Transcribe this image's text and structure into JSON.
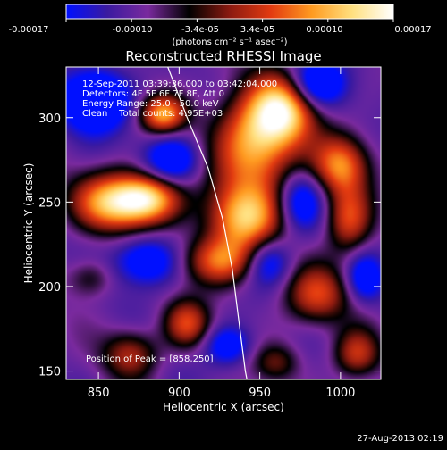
{
  "title": "Reconstructed RHESSI Image",
  "colorbar": {
    "tick_labels": [
      "-0.00017",
      "-0.00010",
      "-3.4e-05",
      "3.4e-05",
      "0.00010",
      "0.00017"
    ],
    "unit_label": "(photons cm⁻² s⁻¹ asec⁻²)",
    "colors": [
      "#0010ff",
      "#3a1aa0",
      "#7a2a9e",
      "#000000",
      "#8b1a10",
      "#e23a10",
      "#ff9a20",
      "#ffe080",
      "#ffffff"
    ]
  },
  "annotations": {
    "time_range": "12-Sep-2011 03:39:36.000 to 03:42:04.000",
    "detectors": "Detectors: 4F 5F 6F 7F 8F, Att 0",
    "energy_range": "Energy Range: 25.0 - 50.0 keV",
    "clean_totals": "Clean    Total counts: 4.95E+03",
    "peak_position": "Position of Peak = [858,250]"
  },
  "footer_date": "27-Aug-2013 02:19",
  "chart_data": {
    "type": "heatmap",
    "title": "Reconstructed RHESSI Image",
    "xlabel": "Heliocentric X (arcsec)",
    "ylabel": "Heliocentric Y (arcsec)",
    "xlim": [
      830,
      1025
    ],
    "ylim": [
      145,
      330
    ],
    "x_ticks": [
      850,
      900,
      950,
      1000
    ],
    "y_ticks": [
      150,
      200,
      250,
      300
    ],
    "limb": [
      [
        893,
        330
      ],
      [
        905,
        300
      ],
      [
        918,
        270
      ],
      [
        927,
        240
      ],
      [
        933,
        210
      ],
      [
        937,
        180
      ],
      [
        941,
        150
      ],
      [
        942,
        145
      ]
    ],
    "blobs": [
      {
        "x": 860,
        "y": 250,
        "sx": 18,
        "sy": 12,
        "a": 1.0
      },
      {
        "x": 882,
        "y": 252,
        "sx": 14,
        "sy": 10,
        "a": 0.85
      },
      {
        "x": 890,
        "y": 302,
        "sx": 10,
        "sy": 8,
        "a": 0.9
      },
      {
        "x": 948,
        "y": 285,
        "sx": 18,
        "sy": 22,
        "a": 1.0
      },
      {
        "x": 965,
        "y": 305,
        "sx": 14,
        "sy": 14,
        "a": 0.9
      },
      {
        "x": 940,
        "y": 240,
        "sx": 16,
        "sy": 14,
        "a": 0.95
      },
      {
        "x": 925,
        "y": 215,
        "sx": 16,
        "sy": 10,
        "a": 0.75
      },
      {
        "x": 1000,
        "y": 272,
        "sx": 12,
        "sy": 12,
        "a": 0.8
      },
      {
        "x": 1005,
        "y": 240,
        "sx": 10,
        "sy": 14,
        "a": 0.7
      },
      {
        "x": 985,
        "y": 195,
        "sx": 14,
        "sy": 12,
        "a": 0.65
      },
      {
        "x": 905,
        "y": 178,
        "sx": 10,
        "sy": 10,
        "a": 0.65
      },
      {
        "x": 870,
        "y": 160,
        "sx": 12,
        "sy": 10,
        "a": 0.55
      },
      {
        "x": 1010,
        "y": 160,
        "sx": 10,
        "sy": 10,
        "a": 0.6
      },
      {
        "x": 960,
        "y": 155,
        "sx": 10,
        "sy": 8,
        "a": 0.4
      },
      {
        "x": 845,
        "y": 205,
        "sx": 10,
        "sy": 8,
        "a": 0.35
      }
    ],
    "dips": [
      {
        "x": 848,
        "y": 310,
        "sx": 14,
        "sy": 12,
        "a": -0.9
      },
      {
        "x": 895,
        "y": 275,
        "sx": 12,
        "sy": 10,
        "a": -0.6
      },
      {
        "x": 985,
        "y": 320,
        "sx": 12,
        "sy": 10,
        "a": -0.7
      },
      {
        "x": 955,
        "y": 215,
        "sx": 10,
        "sy": 10,
        "a": -0.5
      },
      {
        "x": 880,
        "y": 215,
        "sx": 14,
        "sy": 10,
        "a": -0.6
      },
      {
        "x": 975,
        "y": 250,
        "sx": 10,
        "sy": 12,
        "a": -0.55
      },
      {
        "x": 930,
        "y": 165,
        "sx": 10,
        "sy": 8,
        "a": -0.5
      },
      {
        "x": 1015,
        "y": 205,
        "sx": 8,
        "sy": 10,
        "a": -0.5
      }
    ]
  }
}
